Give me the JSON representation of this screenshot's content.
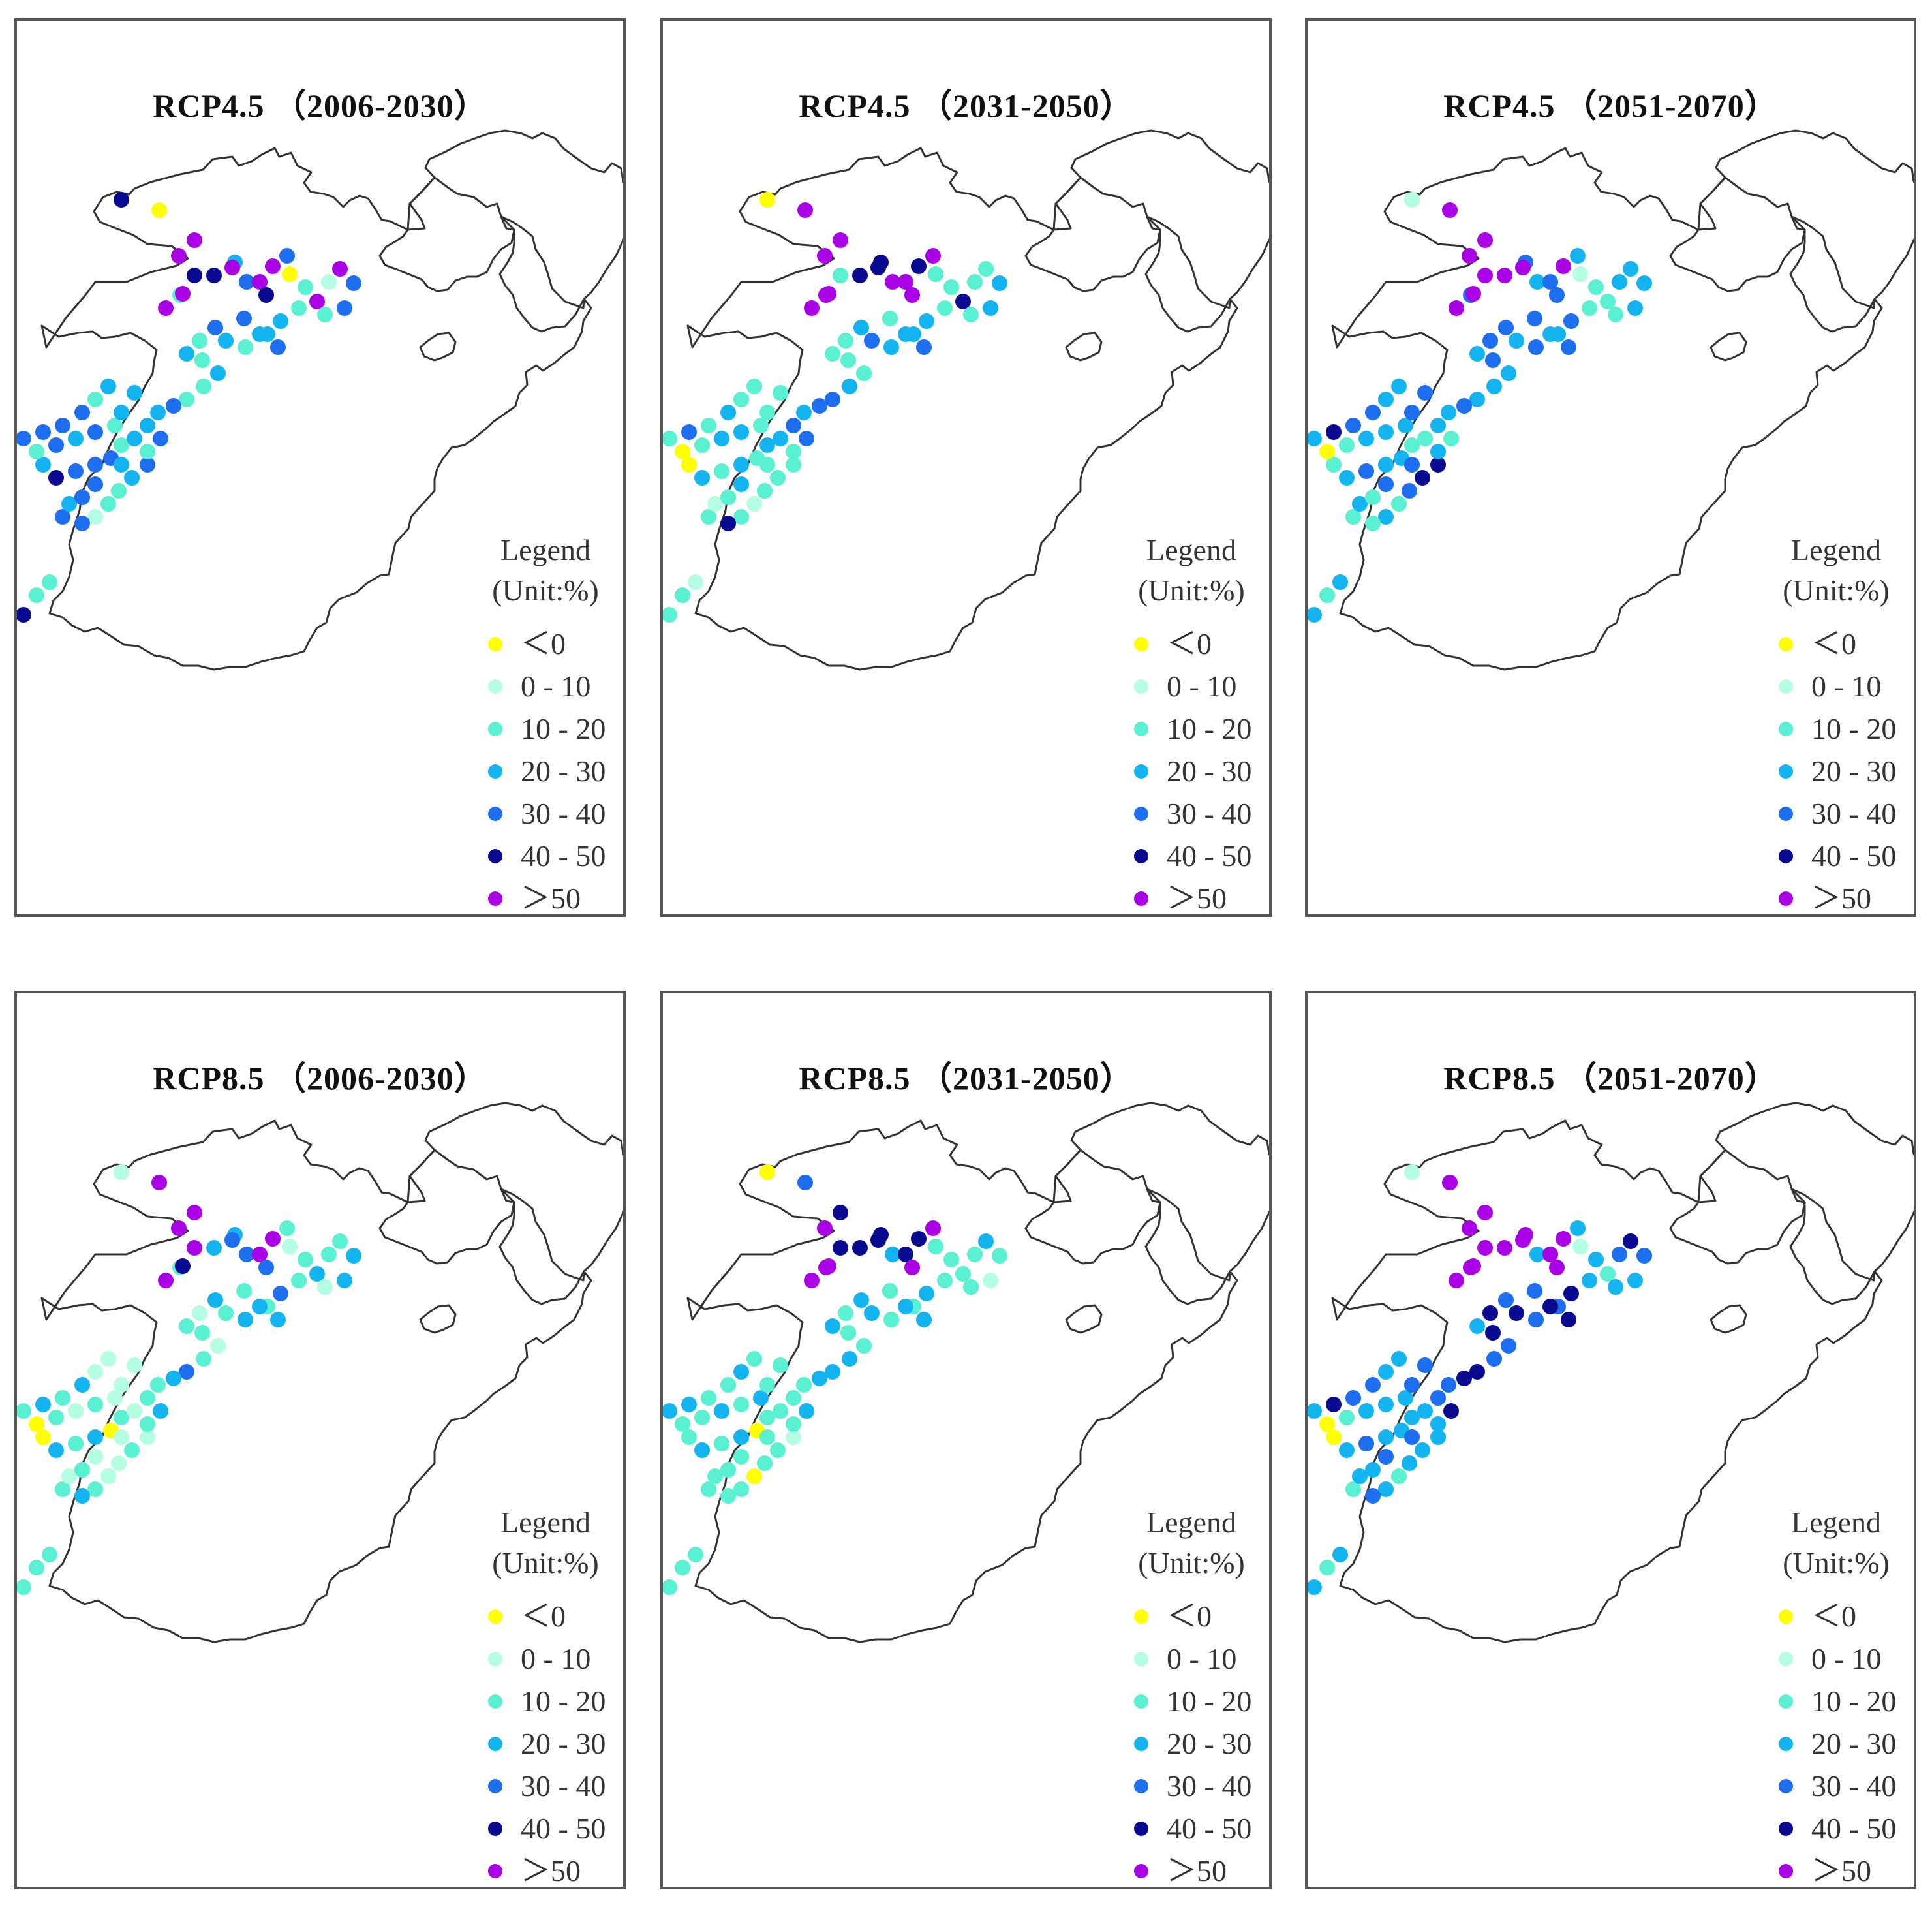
{
  "categories": [
    {
      "label": "＜0",
      "color": "#ffff00"
    },
    {
      "label": "0 - 10",
      "color": "#b4ffe1"
    },
    {
      "label": "10 - 20",
      "color": "#5af0d2"
    },
    {
      "label": "20 - 30",
      "color": "#14b4f0"
    },
    {
      "label": "30 - 40",
      "color": "#1e6ef0"
    },
    {
      "label": "40 - 50",
      "color": "#0a0a91"
    },
    {
      "label": "＞50",
      "color": "#aa00e6"
    }
  ],
  "legend_title_1": "Legend",
  "legend_title_2": "(Unit:%)",
  "panels": [
    {
      "title": "RCP4.5 （2006-2030）",
      "station_categories": [
        5,
        0,
        6,
        6,
        3,
        4,
        2,
        6,
        6,
        5,
        5,
        6,
        6,
        6,
        5,
        4,
        0,
        2,
        6,
        1,
        6,
        4,
        4,
        2,
        2,
        3,
        3,
        4,
        3,
        4,
        2,
        3,
        4,
        2,
        3,
        2,
        3,
        2,
        2,
        4,
        3,
        3,
        4,
        4,
        3,
        2,
        2,
        1,
        4,
        4,
        3,
        4,
        4,
        4,
        2,
        3,
        2,
        3,
        4,
        4,
        5,
        3,
        2,
        4,
        3,
        4,
        2,
        3,
        3,
        3,
        2,
        4,
        4,
        4,
        4,
        3,
        5,
        2,
        3,
        5,
        4,
        4,
        2,
        3,
        3,
        5,
        4,
        2,
        3,
        2,
        4,
        2,
        2,
        5,
        3,
        5,
        4,
        4,
        5,
        2,
        2
      ]
    },
    {
      "title": "RCP4.5 （2031-2050）",
      "station_categories": [
        0,
        6,
        6,
        6,
        5,
        6,
        6,
        6,
        6,
        2,
        5,
        5,
        6,
        5,
        6,
        6,
        2,
        2,
        5,
        2,
        2,
        3,
        3,
        2,
        2,
        3,
        3,
        2,
        3,
        4,
        3,
        4,
        3,
        2,
        2,
        2,
        2,
        3,
        4,
        4,
        3,
        4,
        4,
        2,
        2,
        2,
        1,
        2,
        5,
        2,
        1,
        2,
        3,
        2,
        3,
        3,
        2,
        2,
        3,
        2,
        3,
        0,
        0,
        2,
        3,
        3,
        2,
        2,
        2,
        2,
        2,
        3,
        2,
        4,
        2,
        2,
        3,
        2,
        2,
        2,
        2,
        2,
        1,
        3,
        2,
        2,
        2,
        2,
        2,
        3,
        2,
        1,
        6,
        1,
        2,
        3,
        3,
        2,
        2,
        2,
        1
      ]
    },
    {
      "title": "RCP4.5 （2051-2070）",
      "station_categories": [
        1,
        6,
        6,
        6,
        4,
        3,
        4,
        6,
        6,
        6,
        6,
        6,
        4,
        6,
        4,
        3,
        1,
        2,
        2,
        3,
        3,
        3,
        3,
        2,
        2,
        4,
        3,
        4,
        3,
        4,
        4,
        3,
        4,
        4,
        3,
        4,
        3,
        3,
        3,
        4,
        3,
        3,
        2,
        5,
        5,
        4,
        2,
        3,
        2,
        2,
        3,
        2,
        4,
        3,
        2,
        2,
        3,
        4,
        3,
        4,
        3,
        2,
        0,
        2,
        3,
        3,
        3,
        4,
        4,
        3,
        3,
        4,
        4,
        5,
        3,
        4,
        3,
        5,
        3,
        3,
        4,
        2,
        3,
        4,
        2,
        4,
        3,
        2,
        2,
        3,
        5,
        2,
        3,
        5,
        3,
        4,
        6,
        2,
        3,
        2,
        3
      ]
    },
    {
      "title": "RCP8.5 （2006-2030）",
      "station_categories": [
        1,
        6,
        6,
        6,
        3,
        4,
        2,
        6,
        5,
        6,
        3,
        4,
        6,
        6,
        4,
        2,
        1,
        2,
        3,
        2,
        2,
        3,
        3,
        1,
        2,
        4,
        2,
        2,
        3,
        3,
        3,
        2,
        3,
        1,
        2,
        2,
        1,
        2,
        4,
        3,
        2,
        2,
        3,
        1,
        2,
        1,
        1,
        2,
        3,
        2,
        1,
        2,
        1,
        0,
        2,
        1,
        2,
        1,
        3,
        2,
        3,
        0,
        0,
        2,
        1,
        2,
        1,
        1,
        1,
        1,
        1,
        3,
        2,
        3,
        2,
        2,
        2,
        0,
        2,
        0,
        2,
        2,
        2,
        2,
        2,
        1,
        2,
        1,
        1,
        2,
        0,
        2,
        2,
        5,
        2,
        2,
        3,
        2,
        2,
        2,
        2
      ]
    },
    {
      "title": "RCP8.5 （2031-2050）",
      "station_categories": [
        0,
        4,
        5,
        6,
        5,
        3,
        6,
        6,
        6,
        5,
        5,
        5,
        5,
        5,
        6,
        6,
        2,
        2,
        2,
        2,
        3,
        2,
        1,
        2,
        2,
        3,
        2,
        2,
        3,
        3,
        2,
        3,
        3,
        2,
        3,
        2,
        2,
        3,
        3,
        3,
        2,
        2,
        3,
        1,
        2,
        2,
        0,
        2,
        2,
        2,
        2,
        2,
        2,
        0,
        2,
        2,
        2,
        2,
        3,
        2,
        3,
        2,
        2,
        2,
        3,
        2,
        3,
        2,
        2,
        2,
        3,
        2,
        2,
        3,
        3,
        2,
        2,
        2,
        2,
        3,
        3,
        2,
        2,
        3,
        2,
        2,
        2,
        2,
        2,
        3,
        2,
        2,
        6,
        1,
        2,
        3,
        3,
        2,
        2,
        2,
        2
      ]
    },
    {
      "title": "RCP8.5 （2051-2070）",
      "station_categories": [
        1,
        6,
        6,
        6,
        6,
        3,
        6,
        6,
        6,
        6,
        6,
        6,
        6,
        6,
        6,
        3,
        1,
        3,
        2,
        4,
        5,
        4,
        3,
        3,
        3,
        5,
        4,
        4,
        5,
        5,
        4,
        5,
        4,
        5,
        3,
        5,
        4,
        4,
        5,
        5,
        4,
        4,
        5,
        3,
        3,
        3,
        2,
        3,
        4,
        2,
        3,
        3,
        4,
        3,
        3,
        3,
        3,
        4,
        3,
        4,
        3,
        0,
        0,
        2,
        3,
        3,
        3,
        4,
        4,
        3,
        3,
        4,
        4,
        5,
        3,
        4,
        3,
        5,
        3,
        3,
        4,
        2,
        3,
        4,
        2,
        4,
        3,
        2,
        2,
        3,
        5,
        2,
        3,
        5,
        3,
        4,
        6,
        2,
        3,
        2,
        3
      ]
    }
  ]
}
